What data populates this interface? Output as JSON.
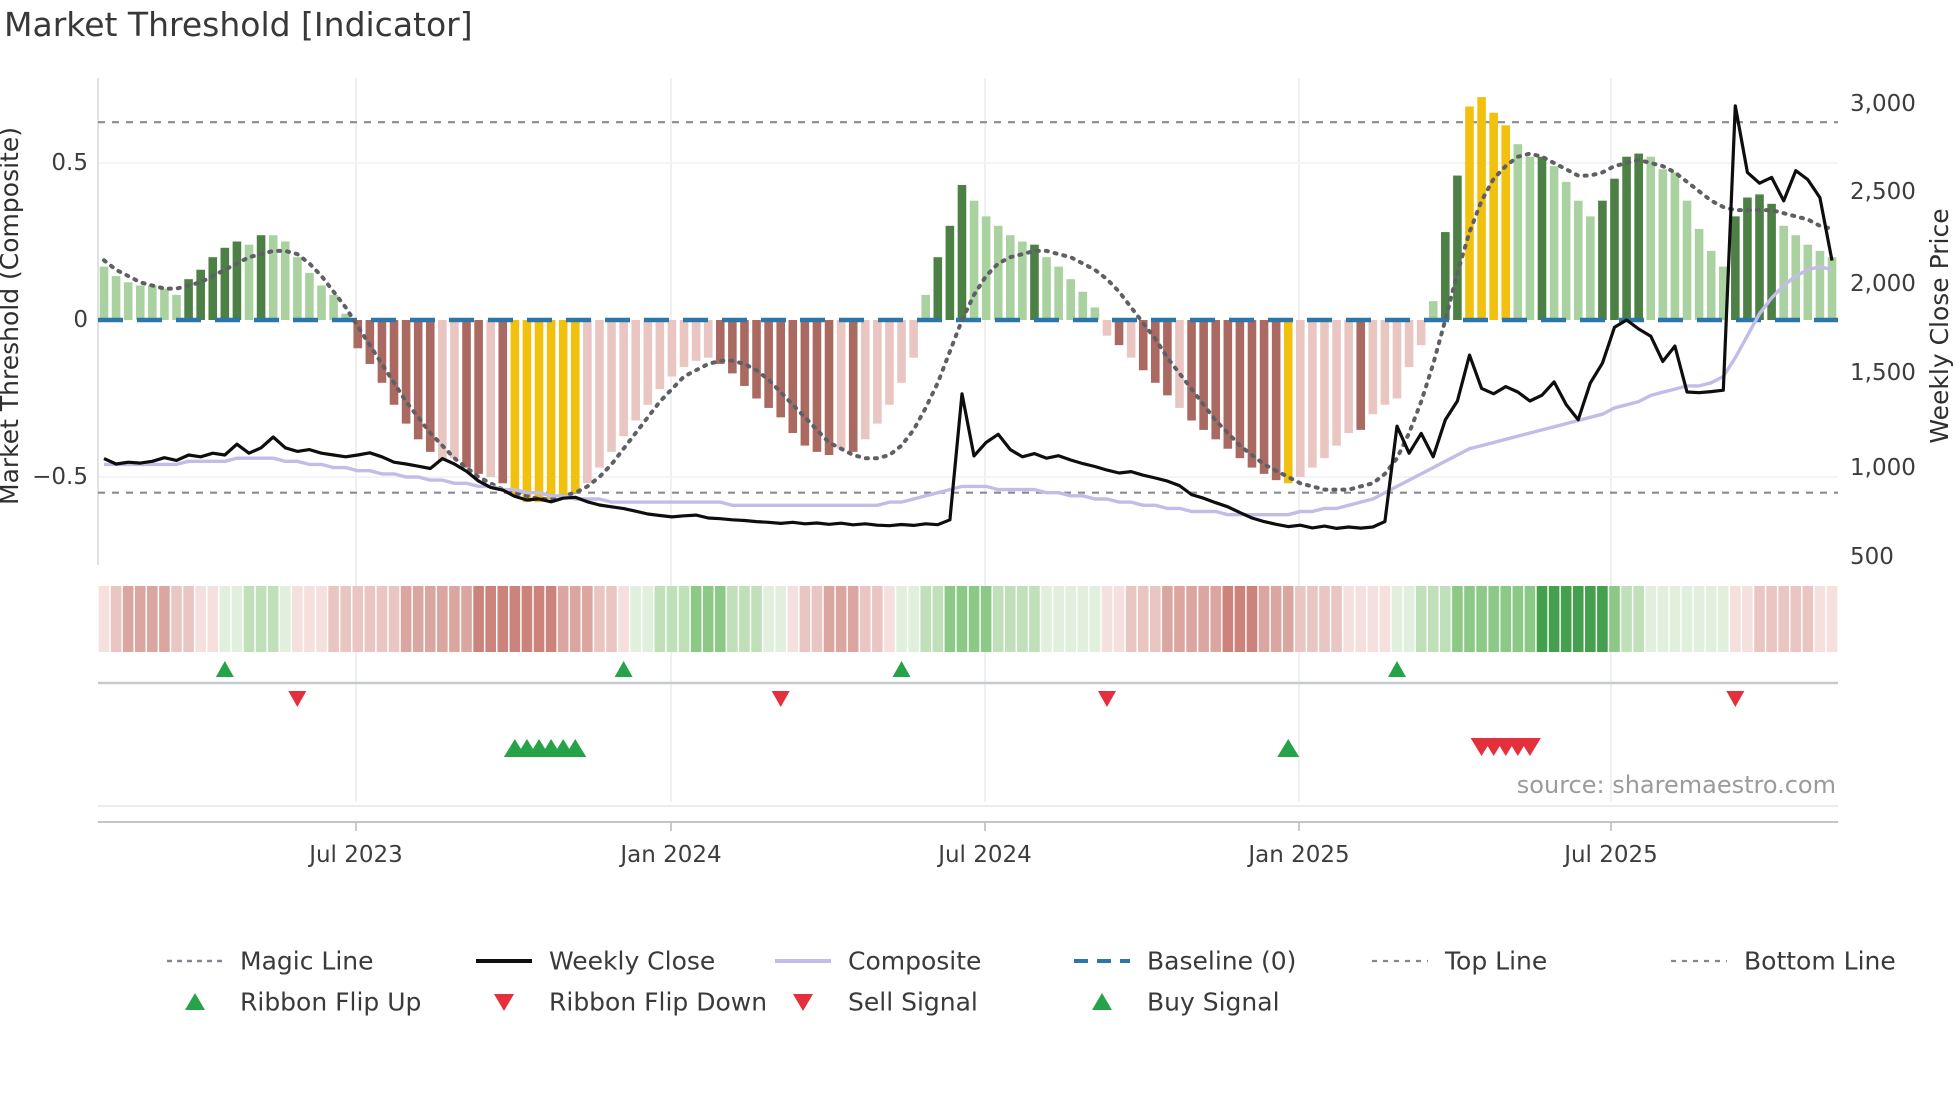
{
  "title": "Market Threshold [Indicator]",
  "source": "source: sharemaestro.com",
  "axes": {
    "left_label": "Market Threshold (Composite)",
    "right_label": "Weekly Close Price",
    "left_ticks": [
      "0.5",
      "0",
      "−0.5"
    ],
    "right_ticks": [
      "3,000",
      "2,500",
      "2,000",
      "1,500",
      "1,000",
      "500"
    ],
    "x_ticks": [
      "Jul 2023",
      "Jan 2024",
      "Jul 2024",
      "Jan 2025",
      "Jul 2025"
    ]
  },
  "legend": {
    "line_items": [
      {
        "label": "Magic Line",
        "style": "dotted-gray"
      },
      {
        "label": "Weekly Close",
        "style": "solid-black"
      },
      {
        "label": "Composite",
        "style": "solid-lavender"
      },
      {
        "label": "Baseline (0)",
        "style": "dashed-blue"
      },
      {
        "label": "Top Line",
        "style": "dotted-gray"
      },
      {
        "label": "Bottom Line",
        "style": "dotted-gray"
      }
    ],
    "marker_items": [
      {
        "label": "Ribbon Flip Up",
        "marker": "triangle-up-green"
      },
      {
        "label": "Ribbon Flip Down",
        "marker": "triangle-down-red"
      },
      {
        "label": "Sell Signal",
        "marker": "triangle-down-red"
      },
      {
        "label": "Buy Signal",
        "marker": "triangle-up-green"
      }
    ]
  },
  "colors": {
    "bar": {
      "lg": "#a9d2a0",
      "dg": "#4d8044",
      "lp": "#e9c6c2",
      "dr": "#aa6a62",
      "au": "#f2c00e"
    },
    "ribbon_pos": [
      "#e1f0dd",
      "#bfe0b8",
      "#8cc986",
      "#44a04d"
    ],
    "ribbon_neg": [
      "#f5e0de",
      "#eac6c3",
      "#dba69f",
      "#cb837c"
    ],
    "magic": "#5f5f66",
    "close": "#0e0e0e",
    "composite": "#c3bce8",
    "baseline": "#2d77a8",
    "threshold_line": "#878c94",
    "flip_up": "#26a348",
    "flip_down": "#e4303d",
    "grid": "#e8eaed",
    "text_dark": "#3a3a3a",
    "text_gray": "#9b9b9b"
  },
  "chart_data": {
    "type": "combo_bar_line",
    "title": "Market Threshold [Indicator]",
    "x_unit": "week",
    "n_points": 144,
    "x_range": [
      "Feb 2023",
      "Nov 2025"
    ],
    "x_tick_labels": [
      "Jul 2023",
      "Jan 2024",
      "Jul 2024",
      "Jan 2025",
      "Jul 2025"
    ],
    "left_axis": {
      "label": "Market Threshold (Composite)",
      "ticks": [
        0.5,
        0,
        -0.5
      ],
      "range": [
        -0.78,
        0.78
      ]
    },
    "right_axis": {
      "label": "Weekly Close Price",
      "ticks": [
        3000,
        2500,
        2000,
        1500,
        1000,
        500
      ],
      "range": [
        440,
        3100
      ]
    },
    "baseline": 0,
    "top_line": 0.63,
    "bottom_line": -0.55,
    "grid": "on",
    "legend_position": "bottom",
    "threshold_bars": {
      "values": [
        0.17,
        0.14,
        0.12,
        0.11,
        0.11,
        0.1,
        0.08,
        0.13,
        0.16,
        0.2,
        0.23,
        0.25,
        0.24,
        0.27,
        0.27,
        0.25,
        0.2,
        0.15,
        0.11,
        0.08,
        0.02,
        -0.09,
        -0.14,
        -0.2,
        -0.27,
        -0.33,
        -0.38,
        -0.42,
        -0.45,
        -0.44,
        -0.47,
        -0.49,
        -0.5,
        -0.52,
        -0.56,
        -0.58,
        -0.58,
        -0.57,
        -0.56,
        -0.55,
        -0.52,
        -0.47,
        -0.42,
        -0.37,
        -0.32,
        -0.27,
        -0.22,
        -0.18,
        -0.15,
        -0.13,
        -0.12,
        -0.14,
        -0.17,
        -0.21,
        -0.25,
        -0.28,
        -0.31,
        -0.36,
        -0.4,
        -0.42,
        -0.43,
        -0.41,
        -0.42,
        -0.38,
        -0.33,
        -0.27,
        -0.2,
        -0.12,
        0.08,
        0.2,
        0.3,
        0.43,
        0.38,
        0.33,
        0.3,
        0.27,
        0.25,
        0.24,
        0.2,
        0.17,
        0.13,
        0.09,
        0.04,
        -0.05,
        -0.08,
        -0.12,
        -0.16,
        -0.2,
        -0.24,
        -0.28,
        -0.32,
        -0.35,
        -0.38,
        -0.41,
        -0.44,
        -0.47,
        -0.49,
        -0.51,
        -0.52,
        -0.5,
        -0.47,
        -0.44,
        -0.4,
        -0.36,
        -0.35,
        -0.3,
        -0.27,
        -0.25,
        -0.15,
        -0.08,
        0.06,
        0.28,
        0.46,
        0.68,
        0.71,
        0.66,
        0.62,
        0.56,
        0.52,
        0.52,
        0.49,
        0.44,
        0.38,
        0.33,
        0.38,
        0.45,
        0.52,
        0.53,
        0.52,
        0.48,
        0.47,
        0.38,
        0.29,
        0.22,
        0.17,
        0.33,
        0.39,
        0.4,
        0.37,
        0.3,
        0.27,
        0.24,
        0.22,
        0.2
      ],
      "colors": [
        "lg",
        "lg",
        "lg",
        "lg",
        "lg",
        "lg",
        "lg",
        "dg",
        "dg",
        "dg",
        "dg",
        "dg",
        "lg",
        "dg",
        "lg",
        "lg",
        "lg",
        "lg",
        "lg",
        "lg",
        "lg",
        "dr",
        "dr",
        "dr",
        "dr",
        "dr",
        "dr",
        "dr",
        "lp",
        "lp",
        "dr",
        "dr",
        "lp",
        "dr",
        "au",
        "au",
        "au",
        "au",
        "au",
        "au",
        "lp",
        "lp",
        "lp",
        "lp",
        "lp",
        "lp",
        "lp",
        "lp",
        "lp",
        "lp",
        "lp",
        "dr",
        "dr",
        "dr",
        "dr",
        "dr",
        "dr",
        "dr",
        "dr",
        "dr",
        "dr",
        "lp",
        "dr",
        "lp",
        "lp",
        "lp",
        "lp",
        "lp",
        "lg",
        "dg",
        "dg",
        "dg",
        "lg",
        "lg",
        "lg",
        "lg",
        "lg",
        "dg",
        "lg",
        "lg",
        "lg",
        "lg",
        "lg",
        "lp",
        "dr",
        "lp",
        "dr",
        "dr",
        "dr",
        "lp",
        "dr",
        "dr",
        "dr",
        "dr",
        "dr",
        "dr",
        "dr",
        "dr",
        "au",
        "lp",
        "lp",
        "lp",
        "lp",
        "lp",
        "dr",
        "lp",
        "lp",
        "lp",
        "lp",
        "lp",
        "lg",
        "dg",
        "dg",
        "au",
        "au",
        "au",
        "au",
        "lg",
        "lg",
        "dg",
        "lg",
        "lg",
        "lg",
        "lg",
        "dg",
        "dg",
        "dg",
        "dg",
        "lg",
        "lg",
        "lg",
        "lg",
        "lg",
        "lg",
        "lg",
        "dg",
        "dg",
        "dg",
        "dg",
        "lg",
        "lg",
        "lg",
        "lg",
        "lg"
      ]
    },
    "magic_line": [
      0.19,
      0.16,
      0.14,
      0.12,
      0.11,
      0.1,
      0.1,
      0.11,
      0.12,
      0.14,
      0.16,
      0.18,
      0.2,
      0.21,
      0.22,
      0.22,
      0.21,
      0.18,
      0.14,
      0.09,
      0.04,
      -0.02,
      -0.08,
      -0.14,
      -0.2,
      -0.26,
      -0.31,
      -0.36,
      -0.4,
      -0.44,
      -0.47,
      -0.5,
      -0.52,
      -0.54,
      -0.55,
      -0.56,
      -0.57,
      -0.57,
      -0.56,
      -0.55,
      -0.53,
      -0.5,
      -0.46,
      -0.41,
      -0.36,
      -0.31,
      -0.26,
      -0.22,
      -0.18,
      -0.16,
      -0.14,
      -0.13,
      -0.13,
      -0.14,
      -0.16,
      -0.19,
      -0.23,
      -0.27,
      -0.31,
      -0.35,
      -0.39,
      -0.41,
      -0.43,
      -0.44,
      -0.44,
      -0.43,
      -0.4,
      -0.35,
      -0.28,
      -0.2,
      -0.1,
      0,
      0.08,
      0.14,
      0.18,
      0.2,
      0.21,
      0.22,
      0.22,
      0.21,
      0.2,
      0.18,
      0.16,
      0.13,
      0.09,
      0.04,
      -0.01,
      -0.06,
      -0.12,
      -0.17,
      -0.22,
      -0.27,
      -0.32,
      -0.36,
      -0.4,
      -0.43,
      -0.46,
      -0.48,
      -0.5,
      -0.52,
      -0.53,
      -0.54,
      -0.54,
      -0.54,
      -0.53,
      -0.52,
      -0.49,
      -0.44,
      -0.36,
      -0.26,
      -0.14,
      0,
      0.15,
      0.28,
      0.38,
      0.45,
      0.49,
      0.52,
      0.53,
      0.52,
      0.5,
      0.48,
      0.46,
      0.46,
      0.47,
      0.49,
      0.5,
      0.51,
      0.5,
      0.49,
      0.47,
      0.44,
      0.41,
      0.38,
      0.36,
      0.35,
      0.35,
      0.35,
      0.35,
      0.34,
      0.33,
      0.32,
      0.3,
      0.29
    ],
    "composite_line": [
      -0.46,
      -0.46,
      -0.46,
      -0.46,
      -0.46,
      -0.46,
      -0.46,
      -0.45,
      -0.45,
      -0.45,
      -0.45,
      -0.44,
      -0.44,
      -0.44,
      -0.44,
      -0.45,
      -0.45,
      -0.46,
      -0.46,
      -0.47,
      -0.47,
      -0.48,
      -0.48,
      -0.49,
      -0.49,
      -0.5,
      -0.5,
      -0.51,
      -0.51,
      -0.52,
      -0.52,
      -0.53,
      -0.53,
      -0.54,
      -0.54,
      -0.55,
      -0.55,
      -0.56,
      -0.56,
      -0.57,
      -0.57,
      -0.57,
      -0.58,
      -0.58,
      -0.58,
      -0.58,
      -0.58,
      -0.58,
      -0.58,
      -0.58,
      -0.58,
      -0.58,
      -0.59,
      -0.59,
      -0.59,
      -0.59,
      -0.59,
      -0.59,
      -0.59,
      -0.59,
      -0.59,
      -0.59,
      -0.59,
      -0.59,
      -0.59,
      -0.58,
      -0.58,
      -0.57,
      -0.56,
      -0.55,
      -0.54,
      -0.53,
      -0.53,
      -0.53,
      -0.54,
      -0.54,
      -0.54,
      -0.54,
      -0.55,
      -0.55,
      -0.56,
      -0.56,
      -0.57,
      -0.57,
      -0.58,
      -0.58,
      -0.59,
      -0.59,
      -0.6,
      -0.6,
      -0.61,
      -0.61,
      -0.61,
      -0.62,
      -0.62,
      -0.62,
      -0.62,
      -0.62,
      -0.62,
      -0.61,
      -0.61,
      -0.6,
      -0.6,
      -0.59,
      -0.58,
      -0.57,
      -0.55,
      -0.53,
      -0.51,
      -0.49,
      -0.47,
      -0.45,
      -0.43,
      -0.41,
      -0.4,
      -0.39,
      -0.38,
      -0.37,
      -0.36,
      -0.35,
      -0.34,
      -0.33,
      -0.32,
      -0.31,
      -0.3,
      -0.28,
      -0.27,
      -0.26,
      -0.24,
      -0.23,
      -0.22,
      -0.21,
      -0.21,
      -0.2,
      -0.18,
      -0.12,
      -0.05,
      0.02,
      0.07,
      0.11,
      0.14,
      0.16,
      0.17,
      0.16
    ],
    "weekly_close": [
      1030,
      1000,
      1010,
      1005,
      1015,
      1035,
      1020,
      1050,
      1040,
      1060,
      1050,
      1110,
      1060,
      1090,
      1150,
      1090,
      1070,
      1080,
      1060,
      1050,
      1040,
      1050,
      1062,
      1040,
      1010,
      1000,
      988,
      975,
      1030,
      1000,
      960,
      905,
      870,
      855,
      820,
      800,
      806,
      790,
      810,
      815,
      790,
      772,
      762,
      752,
      738,
      722,
      714,
      706,
      712,
      716,
      700,
      696,
      690,
      686,
      680,
      676,
      670,
      676,
      668,
      672,
      665,
      671,
      662,
      668,
      660,
      657,
      664,
      659,
      668,
      663,
      690,
      1390,
      1045,
      1120,
      1165,
      1080,
      1040,
      1058,
      1032,
      1046,
      1022,
      1002,
      986,
      966,
      950,
      958,
      938,
      922,
      905,
      880,
      830,
      810,
      785,
      762,
      730,
      700,
      680,
      665,
      652,
      660,
      645,
      655,
      642,
      650,
      644,
      650,
      680,
      1210,
      1060,
      1170,
      1040,
      1245,
      1350,
      1605,
      1420,
      1390,
      1430,
      1400,
      1350,
      1382,
      1456,
      1330,
      1246,
      1450,
      1560,
      1760,
      1800,
      1750,
      1710,
      1570,
      1655,
      1400,
      1396,
      1402,
      1410,
      2990,
      2620,
      2560,
      2592,
      2462,
      2630,
      2580,
      2480,
      2130
    ],
    "ribbon": [
      -1,
      -2,
      -3,
      -3,
      -3,
      -3,
      -2,
      -2,
      -1,
      -1,
      1,
      1,
      2,
      2,
      2,
      1,
      -1,
      -1,
      -1,
      -2,
      -2,
      -2,
      -2,
      -2,
      -2,
      -3,
      -3,
      -3,
      -3,
      -3,
      -3,
      -4,
      -4,
      -4,
      -4,
      -4,
      -4,
      -4,
      -3,
      -3,
      -3,
      -2,
      -2,
      -1,
      1,
      1,
      2,
      2,
      2,
      3,
      3,
      3,
      2,
      2,
      2,
      1,
      1,
      -1,
      -2,
      -2,
      -3,
      -3,
      -3,
      -2,
      -2,
      -1,
      1,
      1,
      2,
      2,
      3,
      3,
      3,
      3,
      2,
      2,
      2,
      2,
      1,
      1,
      1,
      1,
      1,
      -1,
      -1,
      -2,
      -2,
      -2,
      -3,
      -3,
      -3,
      -3,
      -3,
      -4,
      -4,
      -4,
      -3,
      -3,
      -3,
      -2,
      -2,
      -2,
      -2,
      -1,
      -1,
      -1,
      -1,
      1,
      1,
      2,
      2,
      2,
      3,
      3,
      3,
      3,
      3,
      3,
      3,
      4,
      4,
      4,
      4,
      4,
      4,
      3,
      2,
      2,
      1,
      1,
      1,
      1,
      1,
      1,
      1,
      -1,
      -1,
      -2,
      -2,
      -2,
      -2,
      -2,
      -1,
      -1
    ],
    "signals": {
      "ribbon_flip_up": [
        10,
        43,
        66,
        107
      ],
      "ribbon_flip_down": [
        16,
        56,
        83,
        135
      ],
      "buy": [
        34,
        35,
        36,
        37,
        38,
        39,
        98
      ],
      "sell": [
        114,
        115,
        116,
        117,
        118
      ]
    }
  }
}
